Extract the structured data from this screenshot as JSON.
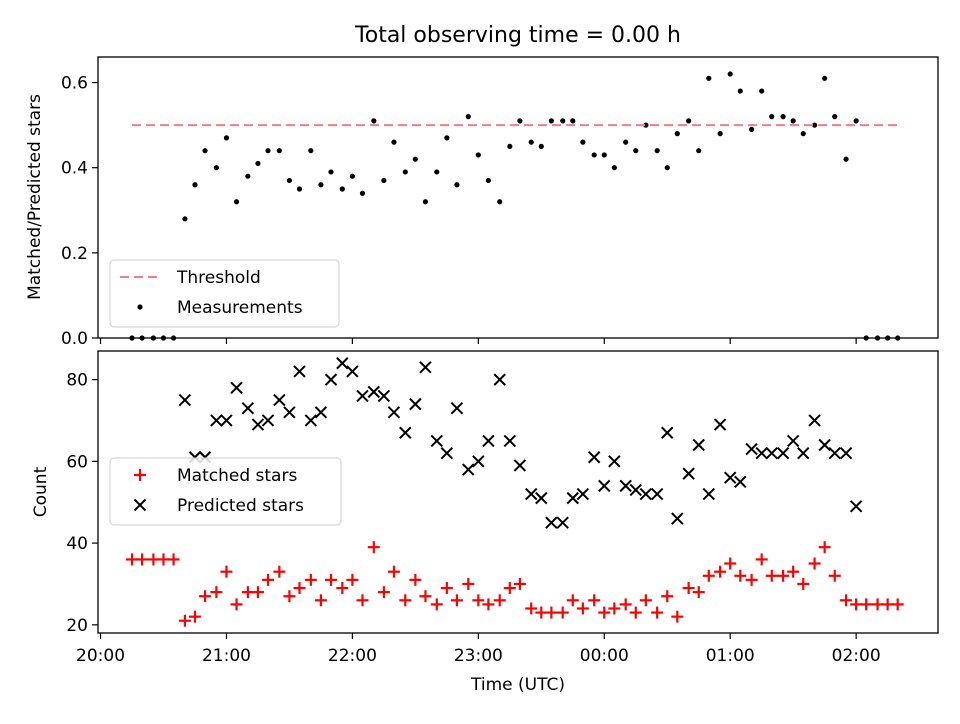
{
  "chart_data": [
    {
      "type": "scatter",
      "title": "Total observing time = 0.00 h",
      "ylabel": "Matched/Predicted stars",
      "xlabel": "",
      "ylim": [
        0,
        0.66
      ],
      "yticks": [
        "0.0",
        "0.2",
        "0.4",
        "0.6"
      ],
      "ytick_values": [
        0,
        0.2,
        0.4,
        0.6
      ],
      "xtick_values_hours": [
        20,
        21,
        22,
        23,
        24,
        25,
        26
      ],
      "xlim_hours": [
        19.98,
        26.65
      ],
      "legend_position": "lower-left",
      "threshold": {
        "name": "Threshold",
        "color": "#f08080",
        "x": [
          20.25,
          26.33
        ],
        "y": [
          0.5,
          0.5
        ]
      },
      "series": [
        {
          "name": "Measurements",
          "color": "#000000",
          "x": [
            20.25,
            20.33,
            20.42,
            20.5,
            20.58,
            20.67,
            20.75,
            20.83,
            20.92,
            21.0,
            21.08,
            21.17,
            21.25,
            21.33,
            21.42,
            21.5,
            21.58,
            21.67,
            21.75,
            21.83,
            21.92,
            22.0,
            22.08,
            22.17,
            22.25,
            22.33,
            22.42,
            22.5,
            22.58,
            22.67,
            22.75,
            22.83,
            22.92,
            23.0,
            23.08,
            23.17,
            23.25,
            23.33,
            23.42,
            23.5,
            23.58,
            23.67,
            23.75,
            23.83,
            23.92,
            24.0,
            24.08,
            24.17,
            24.25,
            24.33,
            24.42,
            24.5,
            24.58,
            24.67,
            24.75,
            24.83,
            24.92,
            25.0,
            25.08,
            25.17,
            25.25,
            25.33,
            25.42,
            25.5,
            25.58,
            25.67,
            25.75,
            25.83,
            25.92,
            26.0,
            26.08,
            26.17,
            26.25,
            26.33
          ],
          "y": [
            0.0,
            0.0,
            0.0,
            0.0,
            0.0,
            0.28,
            0.36,
            0.44,
            0.4,
            0.47,
            0.32,
            0.38,
            0.41,
            0.44,
            0.44,
            0.37,
            0.35,
            0.44,
            0.36,
            0.39,
            0.35,
            0.38,
            0.34,
            0.51,
            0.37,
            0.46,
            0.39,
            0.42,
            0.32,
            0.39,
            0.47,
            0.36,
            0.52,
            0.43,
            0.37,
            0.32,
            0.45,
            0.51,
            0.46,
            0.45,
            0.51,
            0.51,
            0.51,
            0.46,
            0.43,
            0.43,
            0.4,
            0.46,
            0.44,
            0.5,
            0.44,
            0.4,
            0.48,
            0.51,
            0.44,
            0.61,
            0.48,
            0.62,
            0.58,
            0.49,
            0.58,
            0.52,
            0.52,
            0.51,
            0.48,
            0.5,
            0.61,
            0.52,
            0.42,
            0.51,
            0.0,
            0.0,
            0.0,
            0.0
          ]
        }
      ]
    },
    {
      "type": "scatter",
      "title": "",
      "ylabel": "Count",
      "xlabel": "Time (UTC)",
      "ylim": [
        18,
        87
      ],
      "yticks": [
        "20",
        "40",
        "60",
        "80"
      ],
      "ytick_values": [
        20,
        40,
        60,
        80
      ],
      "xticks": [
        "20:00",
        "21:00",
        "22:00",
        "23:00",
        "00:00",
        "01:00",
        "02:00"
      ],
      "xtick_values_hours": [
        20,
        21,
        22,
        23,
        24,
        25,
        26
      ],
      "xlim_hours": [
        19.98,
        26.65
      ],
      "legend_position": "center-left",
      "series": [
        {
          "name": "Matched stars",
          "color": "#ff0000",
          "marker": "plus",
          "x": [
            20.25,
            20.33,
            20.42,
            20.5,
            20.58,
            20.67,
            20.75,
            20.83,
            20.92,
            21.0,
            21.08,
            21.17,
            21.25,
            21.33,
            21.42,
            21.5,
            21.58,
            21.67,
            21.75,
            21.83,
            21.92,
            22.0,
            22.08,
            22.17,
            22.25,
            22.33,
            22.42,
            22.5,
            22.58,
            22.67,
            22.75,
            22.83,
            22.92,
            23.0,
            23.08,
            23.17,
            23.25,
            23.33,
            23.42,
            23.5,
            23.58,
            23.67,
            23.75,
            23.83,
            23.92,
            24.0,
            24.08,
            24.17,
            24.25,
            24.33,
            24.42,
            24.5,
            24.58,
            24.67,
            24.75,
            24.83,
            24.92,
            25.0,
            25.08,
            25.17,
            25.25,
            25.33,
            25.42,
            25.5,
            25.58,
            25.67,
            25.75,
            25.83,
            25.92,
            26.0,
            26.08,
            26.17,
            26.25,
            26.33
          ],
          "y": [
            36,
            36,
            36,
            36,
            36,
            21,
            22,
            27,
            28,
            33,
            25,
            28,
            28,
            31,
            33,
            27,
            29,
            31,
            26,
            31,
            29,
            31,
            26,
            39,
            28,
            33,
            26,
            31,
            27,
            25,
            29,
            26,
            30,
            26,
            25,
            26,
            29,
            30,
            24,
            23,
            23,
            23,
            26,
            24,
            26,
            23,
            24,
            25,
            23,
            26,
            23,
            27,
            22,
            29,
            28,
            32,
            33,
            35,
            32,
            31,
            36,
            32,
            32,
            33,
            30,
            35,
            39,
            32,
            26,
            25,
            25,
            25,
            25,
            25
          ]
        },
        {
          "name": "Predicted stars",
          "color": "#000000",
          "marker": "cross",
          "x": [
            20.67,
            20.75,
            20.83,
            20.92,
            21.0,
            21.08,
            21.17,
            21.25,
            21.33,
            21.42,
            21.5,
            21.58,
            21.67,
            21.75,
            21.83,
            21.92,
            22.0,
            22.08,
            22.17,
            22.25,
            22.33,
            22.42,
            22.5,
            22.58,
            22.67,
            22.75,
            22.83,
            22.92,
            23.0,
            23.08,
            23.17,
            23.25,
            23.33,
            23.42,
            23.5,
            23.58,
            23.67,
            23.75,
            23.83,
            23.92,
            24.0,
            24.08,
            24.17,
            24.25,
            24.33,
            24.42,
            24.5,
            24.58,
            24.67,
            24.75,
            24.83,
            24.92,
            25.0,
            25.08,
            25.17,
            25.25,
            25.33,
            25.42,
            25.5,
            25.58,
            25.67,
            25.75,
            25.83,
            25.92,
            26.0
          ],
          "y": [
            75,
            61,
            61,
            70,
            70,
            78,
            73,
            69,
            70,
            75,
            72,
            82,
            70,
            72,
            80,
            84,
            82,
            76,
            77,
            76,
            72,
            67,
            74,
            83,
            65,
            62,
            73,
            58,
            60,
            65,
            80,
            65,
            59,
            52,
            51,
            45,
            45,
            51,
            52,
            61,
            54,
            60,
            54,
            53,
            52,
            52,
            67,
            46,
            57,
            64,
            52,
            69,
            56,
            55,
            63,
            62,
            62,
            62,
            65,
            62,
            70,
            64,
            62,
            62,
            49
          ]
        }
      ]
    }
  ]
}
